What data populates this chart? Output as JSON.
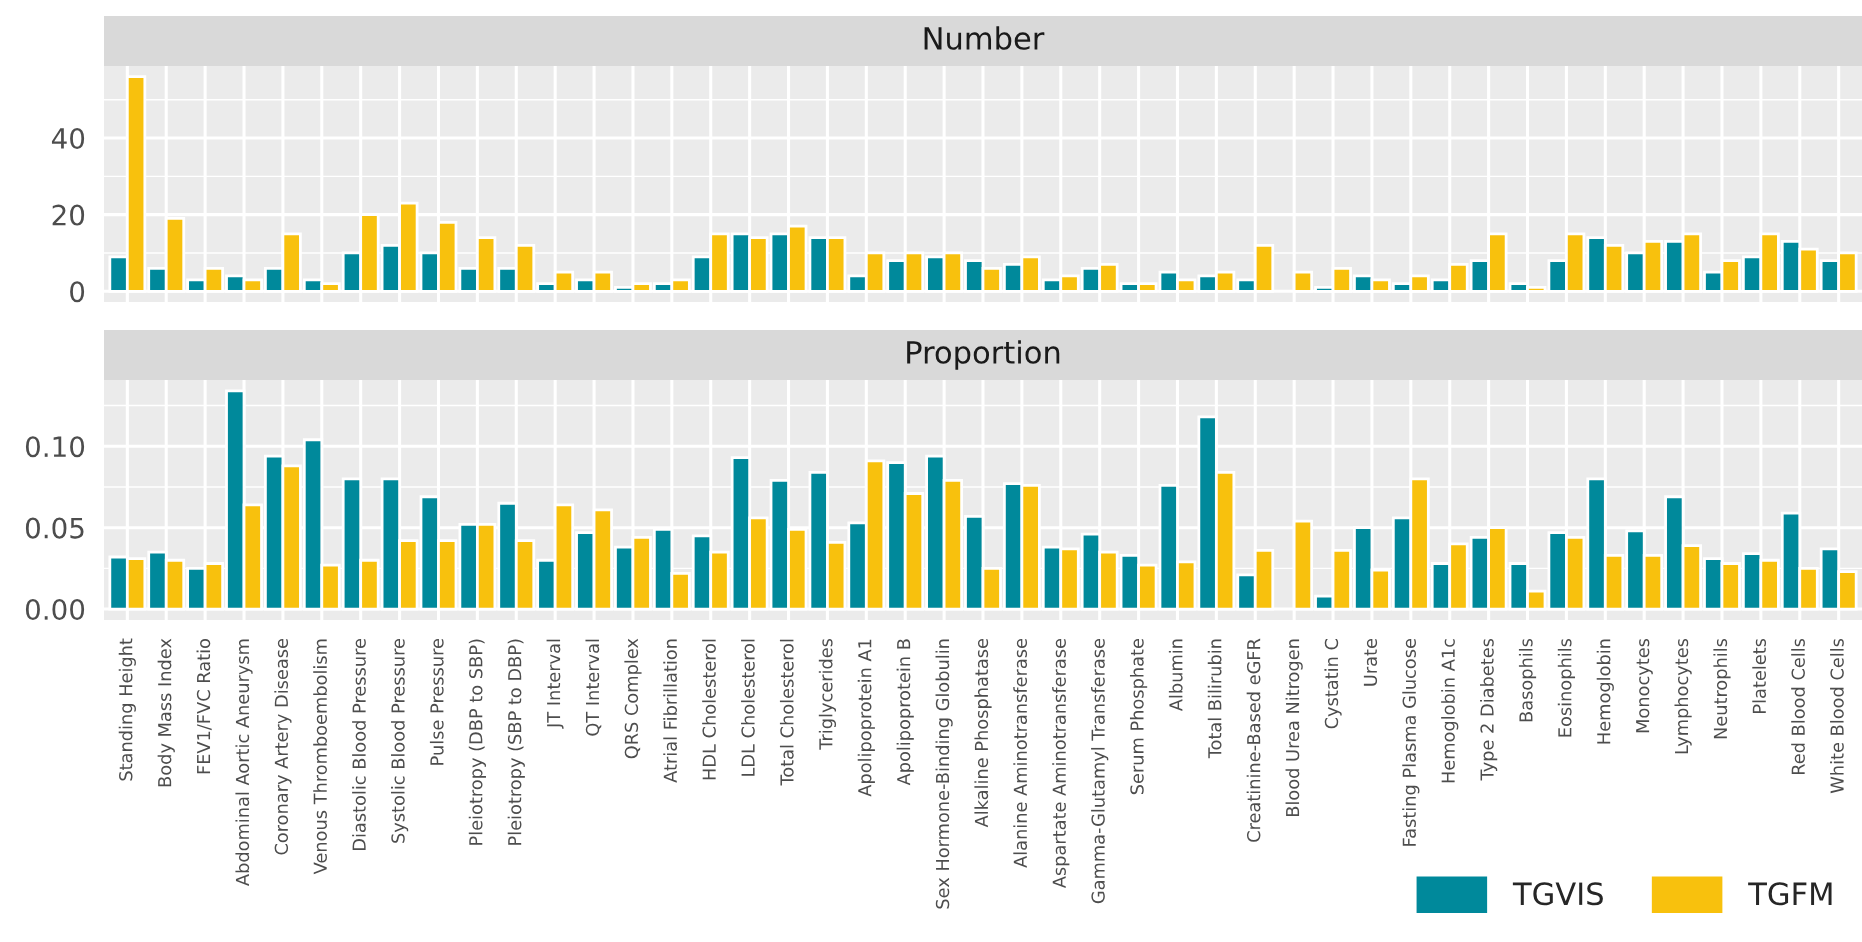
{
  "chart_data": [
    {
      "type": "bar",
      "title": "Number",
      "tick_labels": "y",
      "grid": true,
      "legend": "bottom right",
      "categories": [
        "Standing Height",
        "Body Mass Index",
        "FEV1/FVC Ratio",
        "Abdominal Aortic Aneurysm",
        "Coronary Artery Disease",
        "Venous Thromboembolism",
        "Diastolic Blood Pressure",
        "Systolic Blood Pressure",
        "Pulse Pressure",
        "Pleiotropy (DBP to SBP)",
        "Pleiotropy (SBP to DBP)",
        "JT Interval",
        "QT Interval",
        "QRS Complex",
        "Atrial Fibrillation",
        "HDL Cholesterol",
        "LDL Cholesterol",
        "Total Cholesterol",
        "Triglycerides",
        "Apolipoprotein A1",
        "Apolipoprotein B",
        "Sex Hormone-Binding Globulin",
        "Alkaline Phosphatase",
        "Alanine Aminotransferase",
        "Aspartate Aminotransferase",
        "Gamma-Glutamyl Transferase",
        "Serum Phosphate",
        "Albumin",
        "Total Bilirubin",
        "Creatinine-Based eGFR",
        "Blood Urea Nitrogen",
        "Cystatin C",
        "Urate",
        "Fasting Plasma Glucose",
        "Hemoglobin A1c",
        "Type 2 Diabetes",
        "Basophils",
        "Eosinophils",
        "Hemoglobin",
        "Monocytes",
        "Lymphocytes",
        "Neutrophils",
        "Platelets",
        "Red Blood Cells",
        "White Blood Cells"
      ],
      "ylim": [
        -2.8,
        58.8
      ],
      "yticks": [
        0,
        20,
        40
      ],
      "series": [
        {
          "name": "TGVIS",
          "color": "#00899b",
          "values": [
            9,
            6,
            3,
            4,
            6,
            3,
            10,
            12,
            10,
            6,
            6,
            2,
            3,
            1,
            2,
            9,
            15,
            15,
            14,
            4,
            8,
            9,
            8,
            7,
            3,
            6,
            2,
            5,
            4,
            3,
            null,
            1,
            4,
            2,
            3,
            8,
            2,
            8,
            14,
            10,
            13,
            5,
            9,
            13,
            8
          ]
        },
        {
          "name": "TGFM",
          "color": "#f8c10d",
          "values": [
            56,
            19,
            6,
            3,
            15,
            2,
            20,
            23,
            18,
            14,
            12,
            5,
            5,
            2,
            3,
            15,
            14,
            17,
            14,
            10,
            10,
            10,
            6,
            9,
            4,
            7,
            2,
            3,
            5,
            12,
            5,
            6,
            3,
            4,
            7,
            15,
            1,
            15,
            12,
            13,
            15,
            8,
            15,
            11,
            10
          ]
        }
      ]
    },
    {
      "type": "bar",
      "title": "Proportion",
      "grid": true,
      "legend": "bottom right",
      "categories": [
        "Standing Height",
        "Body Mass Index",
        "FEV1/FVC Ratio",
        "Abdominal Aortic Aneurysm",
        "Coronary Artery Disease",
        "Venous Thromboembolism",
        "Diastolic Blood Pressure",
        "Systolic Blood Pressure",
        "Pulse Pressure",
        "Pleiotropy (DBP to SBP)",
        "Pleiotropy (SBP to DBP)",
        "JT Interval",
        "QT Interval",
        "QRS Complex",
        "Atrial Fibrillation",
        "HDL Cholesterol",
        "LDL Cholesterol",
        "Total Cholesterol",
        "Triglycerides",
        "Apolipoprotein A1",
        "Apolipoprotein B",
        "Sex Hormone-Binding Globulin",
        "Alkaline Phosphatase",
        "Alanine Aminotransferase",
        "Aspartate Aminotransferase",
        "Gamma-Glutamyl Transferase",
        "Serum Phosphate",
        "Albumin",
        "Total Bilirubin",
        "Creatinine-Based eGFR",
        "Blood Urea Nitrogen",
        "Cystatin C",
        "Urate",
        "Fasting Plasma Glucose",
        "Hemoglobin A1c",
        "Type 2 Diabetes",
        "Basophils",
        "Eosinophils",
        "Hemoglobin",
        "Monocytes",
        "Lymphocytes",
        "Neutrophils",
        "Platelets",
        "Red Blood Cells",
        "White Blood Cells"
      ],
      "ylim": [
        -0.0067,
        0.1407
      ],
      "yticks": [
        {
          "value": 0,
          "label": "0.00"
        },
        {
          "value": 0.05,
          "label": "0.05"
        },
        {
          "value": 0.1,
          "label": "0.10"
        }
      ],
      "series": [
        {
          "name": "TGVIS",
          "color": "#00899b",
          "values": [
            0.032,
            0.035,
            0.025,
            0.134,
            0.094,
            0.104,
            0.08,
            0.08,
            0.069,
            0.052,
            0.065,
            0.03,
            0.047,
            0.038,
            0.049,
            0.045,
            0.093,
            0.079,
            0.084,
            0.053,
            0.09,
            0.094,
            0.057,
            0.077,
            0.038,
            0.046,
            0.033,
            0.076,
            0.118,
            0.021,
            null,
            0.008,
            0.05,
            0.056,
            0.028,
            0.044,
            0.028,
            0.047,
            0.08,
            0.048,
            0.069,
            0.031,
            0.034,
            0.059,
            0.037
          ]
        },
        {
          "name": "TGFM",
          "color": "#f8c10d",
          "values": [
            0.031,
            0.03,
            0.028,
            0.064,
            0.088,
            0.027,
            0.03,
            0.042,
            0.042,
            0.052,
            0.042,
            0.064,
            0.061,
            0.044,
            0.022,
            0.035,
            0.056,
            0.049,
            0.041,
            0.091,
            0.071,
            0.079,
            0.025,
            0.076,
            0.037,
            0.035,
            0.027,
            0.029,
            0.084,
            0.036,
            0.054,
            0.036,
            0.024,
            0.08,
            0.04,
            0.05,
            0.011,
            0.044,
            0.033,
            0.033,
            0.039,
            0.028,
            0.03,
            0.025,
            0.023
          ]
        }
      ]
    }
  ]
}
